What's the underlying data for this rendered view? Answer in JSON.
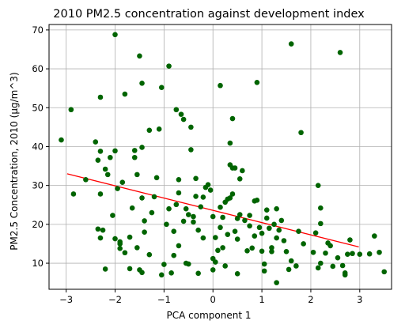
{
  "chart_data": {
    "type": "scatter",
    "title": "2010 PM2.5 concentration against development index",
    "xlabel": "PCA component 1",
    "ylabel": "PM2.5 Concentration, 2010 (μg/m^3)",
    "xlim": [
      -3.35,
      3.65
    ],
    "ylim": [
      3.3,
      71.4
    ],
    "xticks": [
      -3,
      -2,
      -1,
      0,
      1,
      2,
      3
    ],
    "yticks": [
      10,
      20,
      30,
      40,
      50,
      60,
      70
    ],
    "grid": true,
    "point_color": "#006400",
    "line_color": "#ff0000",
    "regression_line": {
      "x": [
        -2.98,
        2.98
      ],
      "y": [
        33.0,
        14.2
      ]
    },
    "points": [
      [
        -3.1,
        41.7
      ],
      [
        -2.9,
        49.5
      ],
      [
        -2.85,
        27.8
      ],
      [
        -2.6,
        31.5
      ],
      [
        -2.4,
        41.2
      ],
      [
        -2.35,
        18.8
      ],
      [
        -2.35,
        36.5
      ],
      [
        -2.3,
        52.7
      ],
      [
        -2.3,
        38.8
      ],
      [
        -2.3,
        16.5
      ],
      [
        -2.3,
        27.8
      ],
      [
        -2.25,
        18.5
      ],
      [
        -2.2,
        8.5
      ],
      [
        -2.2,
        34.2
      ],
      [
        -2.15,
        32.8
      ],
      [
        -2.1,
        37.2
      ],
      [
        -2.05,
        22.3
      ],
      [
        -2.0,
        68.8
      ],
      [
        -2.0,
        38.9
      ],
      [
        -2.0,
        16.3
      ],
      [
        -1.95,
        29.2
      ],
      [
        -1.9,
        15.5
      ],
      [
        -1.9,
        13.8
      ],
      [
        -1.9,
        15.0
      ],
      [
        -1.85,
        30.8
      ],
      [
        -1.8,
        53.5
      ],
      [
        -1.8,
        12.7
      ],
      [
        -1.7,
        16.7
      ],
      [
        -1.7,
        8.6
      ],
      [
        -1.65,
        24.2
      ],
      [
        -1.6,
        39.0
      ],
      [
        -1.6,
        37.2
      ],
      [
        -1.55,
        32.8
      ],
      [
        -1.55,
        14.0
      ],
      [
        -1.5,
        63.3
      ],
      [
        -1.5,
        8.3
      ],
      [
        -1.45,
        56.3
      ],
      [
        -1.45,
        39.8
      ],
      [
        -1.45,
        26.8
      ],
      [
        -1.45,
        7.6
      ],
      [
        -1.4,
        20.9
      ],
      [
        -1.4,
        18.0
      ],
      [
        -1.3,
        44.2
      ],
      [
        -1.3,
        12.2
      ],
      [
        -1.25,
        23.0
      ],
      [
        -1.2,
        27.1
      ],
      [
        -1.15,
        32.0
      ],
      [
        -1.1,
        44.5
      ],
      [
        -1.05,
        55.2
      ],
      [
        -1.05,
        7.0
      ],
      [
        -1.0,
        9.7
      ],
      [
        -0.95,
        20.0
      ],
      [
        -0.9,
        60.7
      ],
      [
        -0.9,
        24.0
      ],
      [
        -0.85,
        7.5
      ],
      [
        -0.8,
        18.2
      ],
      [
        -0.8,
        12.0
      ],
      [
        -0.75,
        49.5
      ],
      [
        -0.75,
        25.1
      ],
      [
        -0.7,
        31.5
      ],
      [
        -0.7,
        28.1
      ],
      [
        -0.7,
        14.5
      ],
      [
        -0.65,
        48.3
      ],
      [
        -0.6,
        47.0
      ],
      [
        -0.6,
        20.8
      ],
      [
        -0.55,
        24.0
      ],
      [
        -0.55,
        10.0
      ],
      [
        -0.5,
        22.5
      ],
      [
        -0.5,
        9.8
      ],
      [
        -0.45,
        45.0
      ],
      [
        -0.45,
        39.2
      ],
      [
        -0.4,
        22.0
      ],
      [
        -0.4,
        20.6
      ],
      [
        -0.35,
        31.8
      ],
      [
        -0.35,
        27.2
      ],
      [
        -0.3,
        18.5
      ],
      [
        -0.3,
        7.4
      ],
      [
        -0.25,
        24.5
      ],
      [
        -0.2,
        27.0
      ],
      [
        -0.2,
        16.5
      ],
      [
        -0.15,
        29.5
      ],
      [
        -0.1,
        30.2
      ],
      [
        -0.05,
        28.8
      ],
      [
        0.0,
        22.0
      ],
      [
        0.0,
        11.2
      ],
      [
        0.0,
        8.3
      ],
      [
        0.05,
        16.6
      ],
      [
        0.05,
        10.3
      ],
      [
        0.1,
        13.3
      ],
      [
        0.15,
        55.7
      ],
      [
        0.15,
        24.4
      ],
      [
        0.15,
        19.2
      ],
      [
        0.2,
        21.8
      ],
      [
        0.2,
        14.0
      ],
      [
        0.25,
        25.7
      ],
      [
        0.25,
        9.3
      ],
      [
        0.3,
        26.5
      ],
      [
        0.3,
        17.4
      ],
      [
        0.35,
        40.9
      ],
      [
        0.35,
        35.3
      ],
      [
        0.35,
        26.8
      ],
      [
        0.4,
        47.2
      ],
      [
        0.4,
        34.5
      ],
      [
        0.4,
        27.8
      ],
      [
        0.45,
        34.5
      ],
      [
        0.45,
        18.2
      ],
      [
        0.5,
        21.5
      ],
      [
        0.5,
        16.2
      ],
      [
        0.5,
        7.3
      ],
      [
        0.55,
        31.7
      ],
      [
        0.55,
        22.5
      ],
      [
        0.6,
        33.8
      ],
      [
        0.65,
        21.0
      ],
      [
        0.7,
        13.2
      ],
      [
        0.75,
        22.3
      ],
      [
        0.75,
        19.6
      ],
      [
        0.8,
        13.9
      ],
      [
        0.85,
        26.0
      ],
      [
        0.85,
        17.0
      ],
      [
        0.9,
        56.5
      ],
      [
        0.9,
        26.2
      ],
      [
        0.95,
        19.2
      ],
      [
        1.0,
        17.7
      ],
      [
        1.0,
        13.1
      ],
      [
        1.05,
        9.8
      ],
      [
        1.05,
        8.0
      ],
      [
        1.1,
        23.7
      ],
      [
        1.1,
        21.6
      ],
      [
        1.15,
        19.0
      ],
      [
        1.2,
        14.0
      ],
      [
        1.2,
        13.0
      ],
      [
        1.25,
        20.0
      ],
      [
        1.3,
        24.0
      ],
      [
        1.3,
        16.5
      ],
      [
        1.3,
        5.0
      ],
      [
        1.35,
        18.5
      ],
      [
        1.4,
        21.0
      ],
      [
        1.45,
        15.8
      ],
      [
        1.5,
        13.0
      ],
      [
        1.55,
        8.4
      ],
      [
        1.6,
        66.4
      ],
      [
        1.6,
        10.6
      ],
      [
        1.7,
        9.3
      ],
      [
        1.75,
        18.2
      ],
      [
        1.8,
        43.6
      ],
      [
        1.85,
        15.0
      ],
      [
        2.05,
        12.8
      ],
      [
        2.1,
        17.8
      ],
      [
        2.15,
        30.0
      ],
      [
        2.15,
        8.8
      ],
      [
        2.2,
        24.2
      ],
      [
        2.2,
        20.2
      ],
      [
        2.2,
        10.0
      ],
      [
        2.3,
        12.6
      ],
      [
        2.35,
        15.2
      ],
      [
        2.4,
        14.5
      ],
      [
        2.45,
        9.2
      ],
      [
        2.55,
        11.4
      ],
      [
        2.6,
        64.2
      ],
      [
        2.65,
        9.4
      ],
      [
        2.7,
        7.5
      ],
      [
        2.7,
        7.0
      ],
      [
        2.75,
        12.3
      ],
      [
        2.8,
        16.0
      ],
      [
        2.85,
        12.5
      ],
      [
        3.0,
        12.3
      ],
      [
        3.2,
        12.4
      ],
      [
        3.3,
        17.0
      ],
      [
        3.4,
        12.8
      ],
      [
        3.5,
        7.8
      ]
    ]
  }
}
